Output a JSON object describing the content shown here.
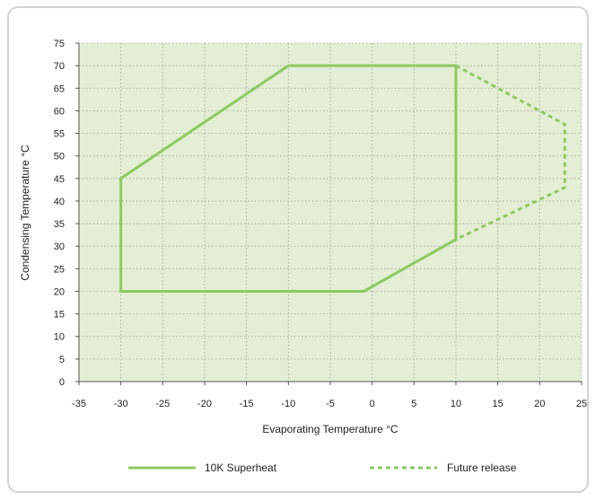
{
  "chart_data": {
    "type": "line",
    "title": "",
    "xlabel": "Evaporating Temperature °C",
    "ylabel": "Condensing Temperature °C",
    "xlim": [
      -35,
      25
    ],
    "ylim": [
      0,
      75
    ],
    "x_ticks": [
      -35,
      -30,
      -25,
      -20,
      -15,
      -10,
      -5,
      0,
      5,
      10,
      15,
      20,
      25
    ],
    "y_ticks": [
      0,
      5,
      10,
      15,
      20,
      25,
      30,
      35,
      40,
      45,
      50,
      55,
      60,
      65,
      70,
      75
    ],
    "grid": true,
    "plot_background": "#e3eed5",
    "legend_position": "bottom",
    "series": [
      {
        "name": "10K Superheat",
        "style": "solid",
        "color": "#8dc960",
        "closed": true,
        "points": [
          [
            -30,
            20
          ],
          [
            -30,
            45
          ],
          [
            -10,
            70
          ],
          [
            10,
            70
          ],
          [
            10,
            31.5
          ],
          [
            -1,
            20
          ]
        ]
      },
      {
        "name": "Future release",
        "style": "dashed",
        "color": "#8dc960",
        "closed": false,
        "points": [
          [
            10,
            70
          ],
          [
            23,
            57
          ],
          [
            23,
            43
          ],
          [
            10,
            31.5
          ]
        ]
      }
    ]
  }
}
